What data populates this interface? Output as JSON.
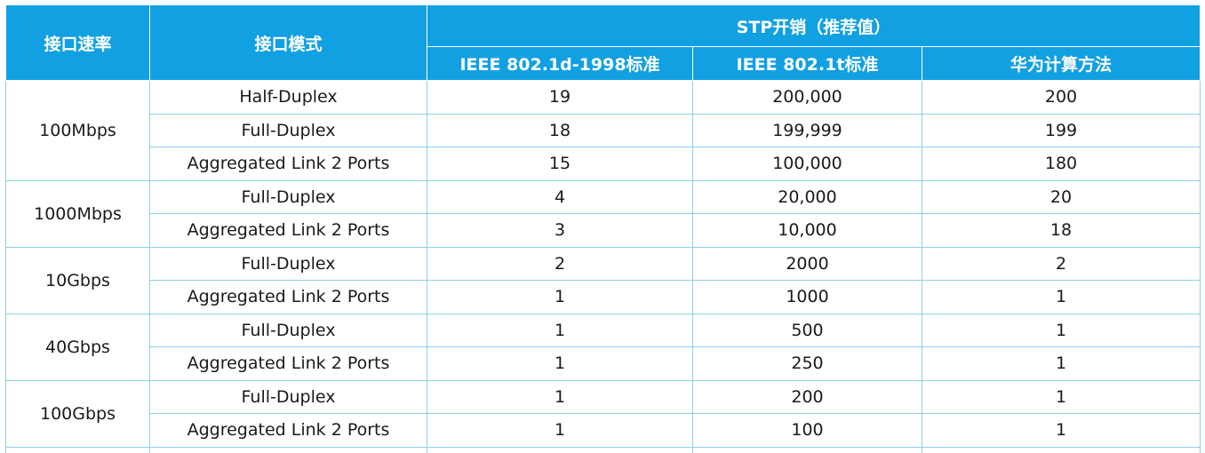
{
  "headers": {
    "speed": "接口速率",
    "mode": "接口模式",
    "stp_cost": "STP开销（推荐值）",
    "ieee_d": "IEEE 802.1d-1998标准",
    "ieee_t": "IEEE 802.1t标准",
    "huawei": "华为计算方法"
  },
  "groups": [
    {
      "speed": "100Mbps",
      "rows": [
        {
          "mode": "Half-Duplex",
          "d": "19",
          "t": "200,000",
          "h": "200"
        },
        {
          "mode": "Full-Duplex",
          "d": "18",
          "t": "199,999",
          "h": "199"
        },
        {
          "mode": "Aggregated Link 2 Ports",
          "d": "15",
          "t": "100,000",
          "h": "180"
        }
      ]
    },
    {
      "speed": "1000Mbps",
      "rows": [
        {
          "mode": "Full-Duplex",
          "d": "4",
          "t": "20,000",
          "h": "20"
        },
        {
          "mode": "Aggregated Link 2 Ports",
          "d": "3",
          "t": "10,000",
          "h": "18"
        }
      ]
    },
    {
      "speed": "10Gbps",
      "rows": [
        {
          "mode": "Full-Duplex",
          "d": "2",
          "t": "2000",
          "h": "2"
        },
        {
          "mode": "Aggregated Link 2 Ports",
          "d": "1",
          "t": "1000",
          "h": "1"
        }
      ]
    },
    {
      "speed": "40Gbps",
      "rows": [
        {
          "mode": "Full-Duplex",
          "d": "1",
          "t": "500",
          "h": "1"
        },
        {
          "mode": "Aggregated Link 2 Ports",
          "d": "1",
          "t": "250",
          "h": "1"
        }
      ]
    },
    {
      "speed": "100Gbps",
      "rows": [
        {
          "mode": "Full-Duplex",
          "d": "1",
          "t": "200",
          "h": "1"
        },
        {
          "mode": "Aggregated Link 2 Ports",
          "d": "1",
          "t": "100",
          "h": "1"
        }
      ]
    }
  ]
}
